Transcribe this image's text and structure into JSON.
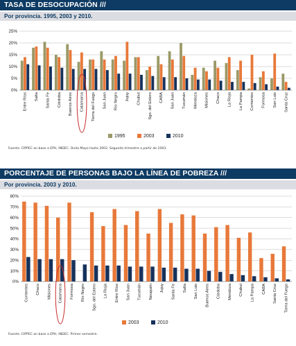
{
  "colors": {
    "series1995": "#9b9967",
    "series2003": "#e8793a",
    "series2010": "#16325c",
    "grid": "#b8b8b8",
    "circle": "#c82828",
    "header_bg": "#0e3b63"
  },
  "top": {
    "title": "TASA DE DESOCUPACIÓN ///",
    "subtitle": "Por provincia. 1995, 2003 y 2010.",
    "source": "Fuente: CIPPEC en base a EPH, INDEC. Onda Mayo hasta 2002. Segundo trimestre a partir de 2003."
  },
  "bottom": {
    "title": "PORCENTAJE DE PERSONAS BAJO LA LÍNEA DE POBREZA ///",
    "subtitle": "Por provincia. 2003 y 2010.",
    "source": "Fuente: CIPPEC en base a EPH, INDEC. Primer semestre."
  },
  "chart_data": [
    {
      "type": "bar",
      "title": "TASA DE DESOCUPACIÓN ///",
      "subtitle": "Por provincia. 1995, 2003 y 2010.",
      "categories": [
        "Entre Ríos",
        "Salta",
        "Santa Fe",
        "Córdoba",
        "Buenos Aires",
        "Catamarca",
        "Tierra del Fuego",
        "San Juan",
        "Río Negro",
        "Jujuy",
        "Chubut",
        "Sgo. del Estero",
        "CABA",
        "San Juan",
        "Tucumán",
        "Mendoza",
        "Misiones",
        "Chaco",
        "La Rioja",
        "La Pampa",
        "Corrientes",
        "Formosa",
        "San Luis",
        "Santa Cruz"
      ],
      "series": [
        {
          "name": "1995",
          "values": [
            12.5,
            18.0,
            20.5,
            15.0,
            19.5,
            12.0,
            13.0,
            16.5,
            13.0,
            12.5,
            14.0,
            8.5,
            14.5,
            16.5,
            20.0,
            6.5,
            9.5,
            12.5,
            11.5,
            8.5,
            0.7,
            5.5,
            5.0,
            7.0
          ]
        },
        {
          "name": "2003",
          "values": [
            14.0,
            18.5,
            18.0,
            14.0,
            17.0,
            16.0,
            13.0,
            13.0,
            14.5,
            20.5,
            14.0,
            10.0,
            11.0,
            13.0,
            14.5,
            9.5,
            8.0,
            9.5,
            14.0,
            12.5,
            15.0,
            8.0,
            15.5,
            3.5
          ]
        },
        {
          "name": "2010",
          "values": [
            11.0,
            10.5,
            10.0,
            9.5,
            9.0,
            9.0,
            9.0,
            8.5,
            7.0,
            7.0,
            6.5,
            6.0,
            5.5,
            5.5,
            5.0,
            4.5,
            4.5,
            4.0,
            3.5,
            3.5,
            3.0,
            2.5,
            1.5,
            1.0
          ]
        }
      ],
      "ylim": [
        0,
        25
      ],
      "yticks": [
        "0%",
        "5%",
        "10%",
        "15%",
        "20%",
        "25%"
      ],
      "xlabel": "",
      "ylabel": "",
      "legend": "bottom-center",
      "grid": true,
      "highlight": "Catamarca"
    },
    {
      "type": "bar",
      "title": "PORCENTAJE DE PERSONAS BAJO LA LÍNEA DE POBREZA ///",
      "subtitle": "Por provincia. 2003 y 2010.",
      "categories": [
        "Corrientes",
        "Chaco",
        "Misiones",
        "Catamarca",
        "Formosa",
        "Río Negro",
        "Sgo. del Estero",
        "La Rioja",
        "Entre Ríos",
        "San Juan",
        "Tucumán",
        "Neuquén",
        "Jujuy",
        "Santa Fe",
        "Salta",
        "San Luis",
        "Buenos Aires",
        "Córdoba",
        "Mendoza",
        "Chubut",
        "La Pampa",
        "CABA",
        "Santa Cruz",
        "Tierra del Fuego"
      ],
      "series": [
        {
          "name": "2003",
          "values": [
            75,
            74,
            71,
            60,
            74,
            null,
            65,
            52,
            68,
            53,
            66,
            45,
            68,
            55,
            63,
            62,
            45,
            51,
            53,
            41,
            46,
            22,
            26,
            33
          ]
        },
        {
          "name": "2010",
          "values": [
            23,
            21,
            21,
            21,
            20,
            16,
            15,
            15,
            15,
            14,
            14,
            14,
            13,
            13,
            12,
            12,
            10,
            9,
            7,
            6,
            5,
            4,
            3,
            2
          ]
        }
      ],
      "ylim": [
        0,
        80
      ],
      "yticks": [
        "0%",
        "10%",
        "20%",
        "30%",
        "40%",
        "50%",
        "60%",
        "70%",
        "80%"
      ],
      "xlabel": "",
      "ylabel": "",
      "legend": "bottom-center",
      "grid": true,
      "highlight": "Catamarca"
    }
  ]
}
